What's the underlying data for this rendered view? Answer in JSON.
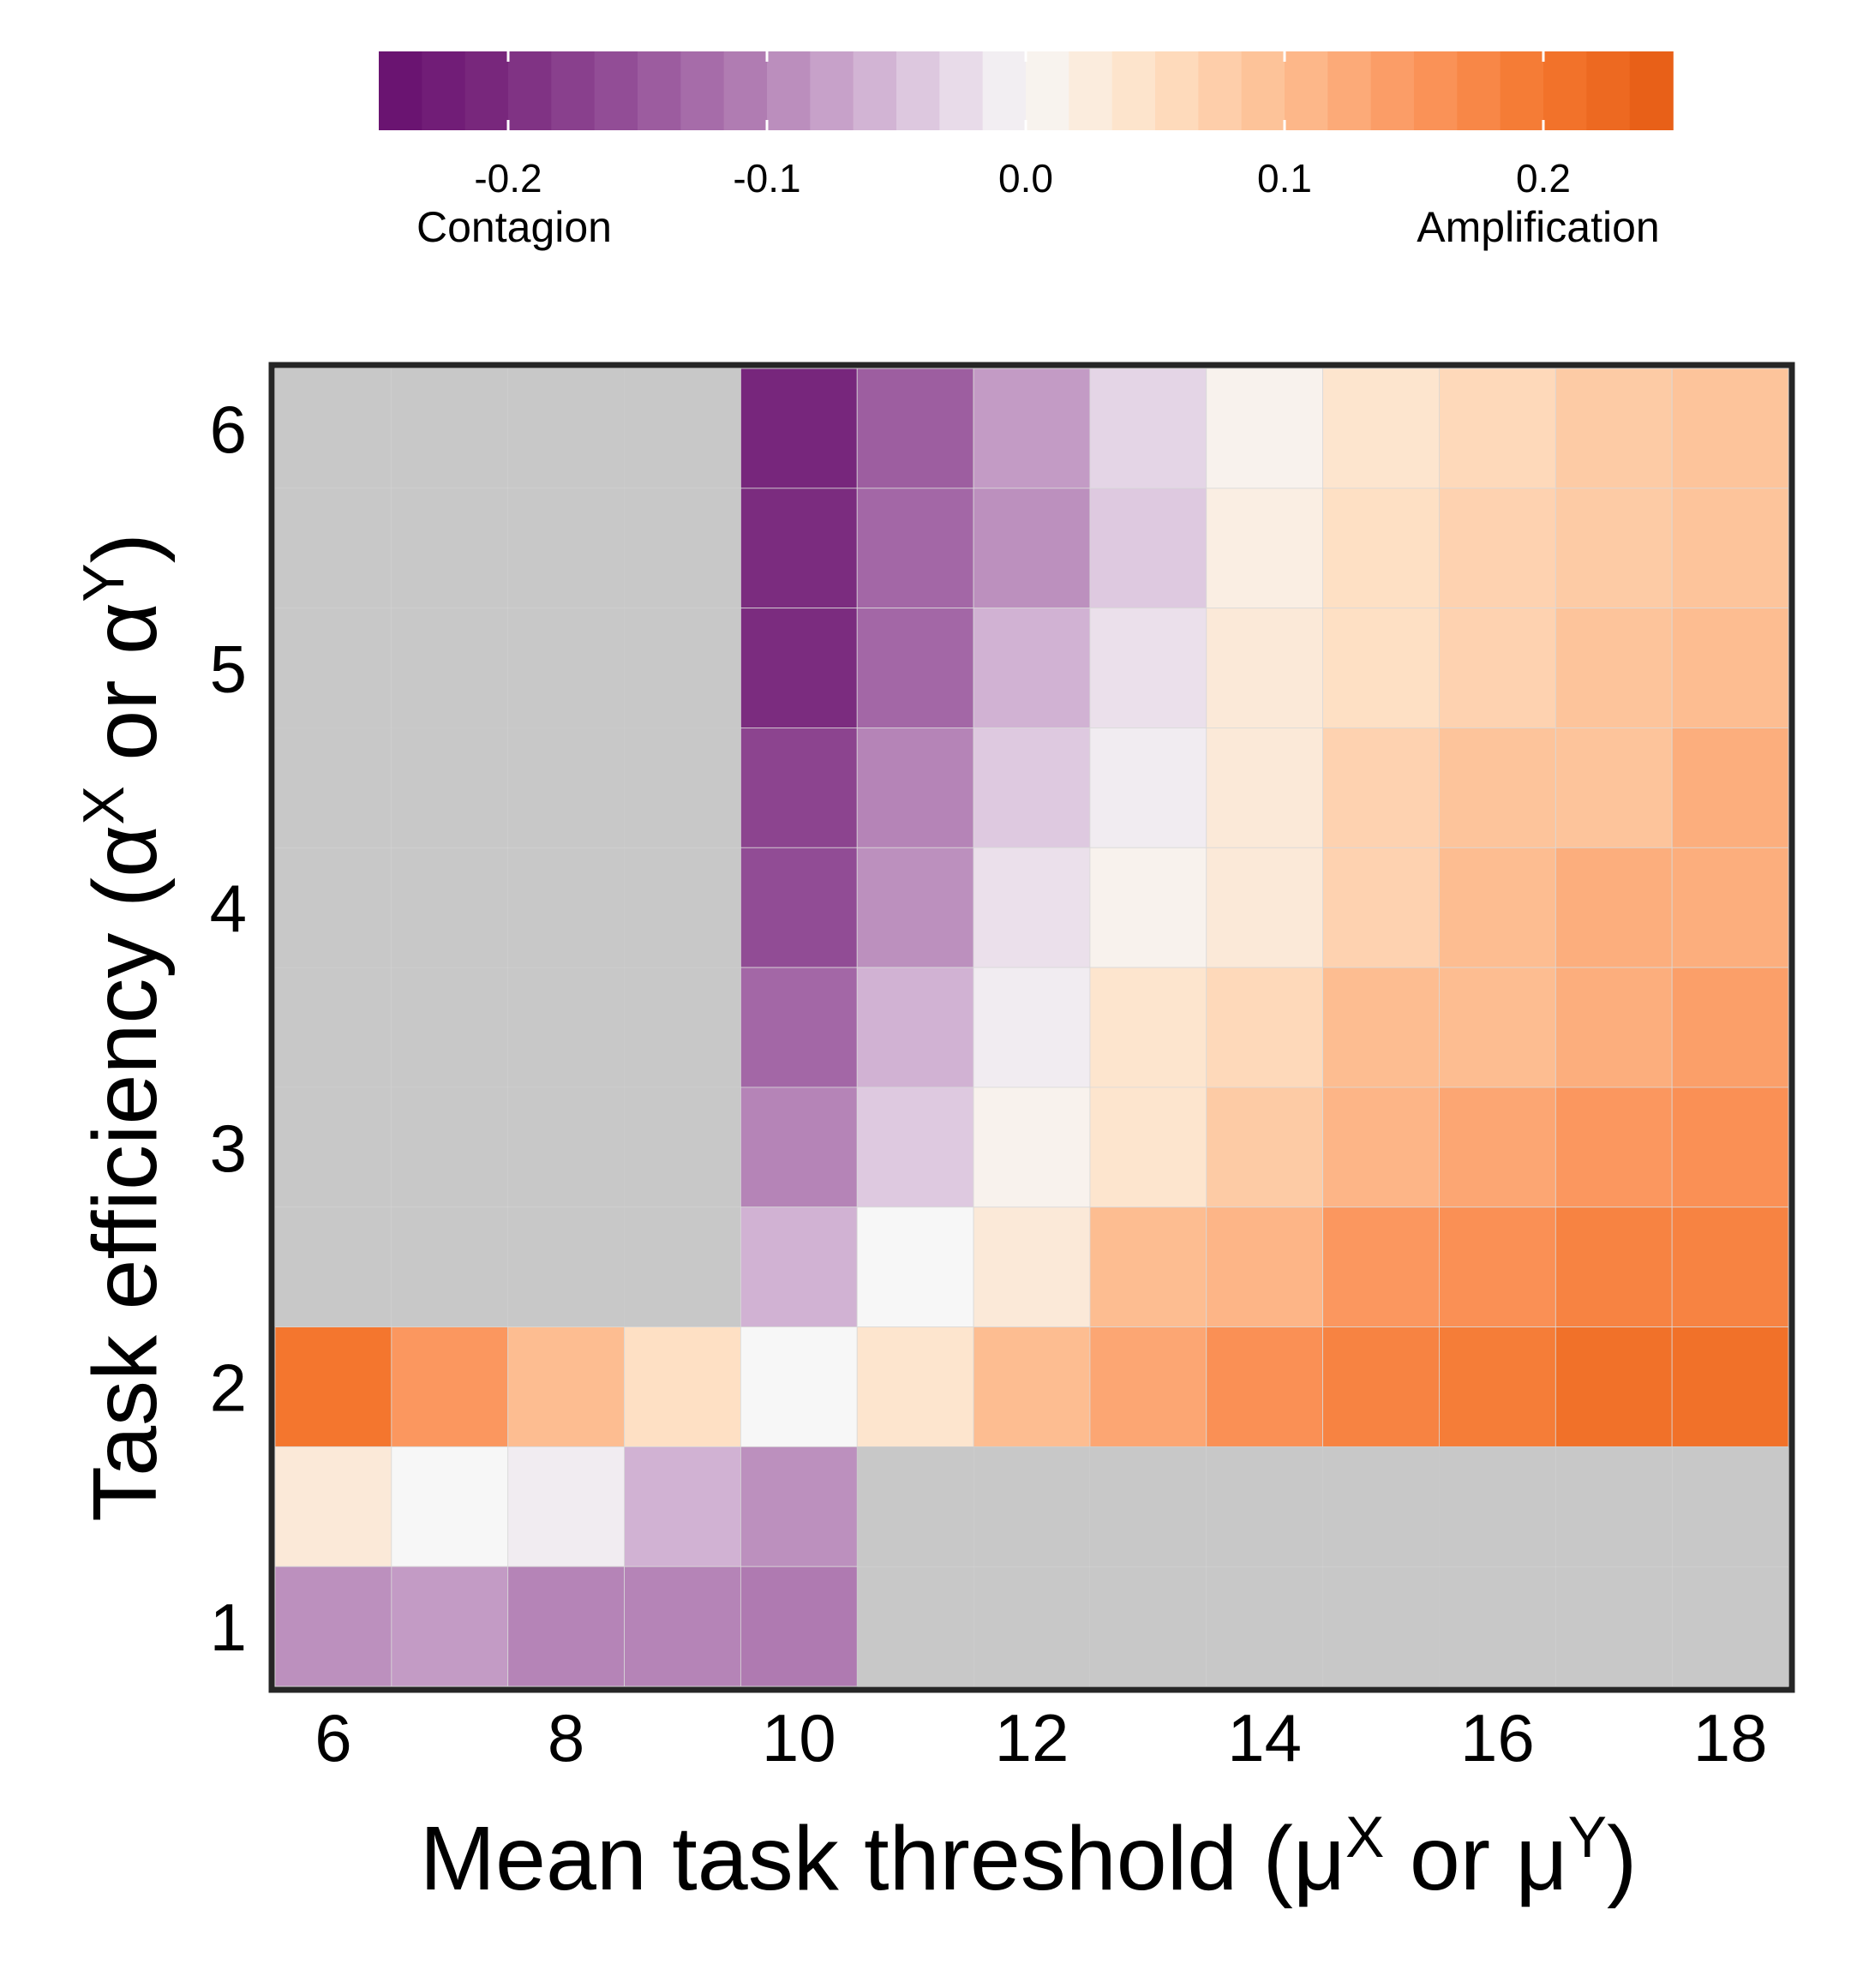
{
  "chart_data": {
    "type": "heatmap",
    "x": [
      6,
      7,
      8,
      9,
      10,
      11,
      12,
      13,
      14,
      15,
      16,
      17,
      18
    ],
    "y": [
      1,
      1.5,
      2,
      2.5,
      3,
      3.5,
      4,
      4.5,
      5,
      5.5,
      6
    ],
    "xticks": [
      "6",
      "8",
      "10",
      "12",
      "14",
      "16",
      "18"
    ],
    "yticks": [
      "1",
      "2",
      "3",
      "4",
      "5",
      "6"
    ],
    "xlabel": "Mean task threshold (μ",
    "xlabel_sup1": "X",
    "xlabel_mid": " or μ",
    "xlabel_sup2": "Y",
    "xlabel_end": ")",
    "ylabel": "Task efficiency (α",
    "ylabel_sup1": "X",
    "ylabel_mid": " or α",
    "ylabel_sup2": "Y",
    "ylabel_end": ")",
    "values_rows_top_to_bottom_y6_to_y1": [
      [
        null,
        null,
        null,
        null,
        -0.21,
        -0.14,
        -0.08,
        -0.03,
        0.01,
        0.04,
        0.06,
        0.08,
        0.09
      ],
      [
        null,
        null,
        null,
        null,
        -0.2,
        -0.13,
        -0.09,
        -0.04,
        0.02,
        0.05,
        0.07,
        0.08,
        0.09
      ],
      [
        null,
        null,
        null,
        null,
        -0.2,
        -0.13,
        -0.06,
        -0.02,
        0.03,
        0.05,
        0.07,
        0.09,
        0.1
      ],
      [
        null,
        null,
        null,
        null,
        -0.17,
        -0.1,
        -0.04,
        -0.01,
        0.03,
        0.07,
        0.09,
        0.09,
        0.12
      ],
      [
        null,
        null,
        null,
        null,
        -0.16,
        -0.09,
        -0.02,
        0.01,
        0.03,
        0.07,
        0.1,
        0.12,
        0.12
      ],
      [
        null,
        null,
        null,
        null,
        -0.13,
        -0.06,
        -0.01,
        0.04,
        0.06,
        0.1,
        0.1,
        0.12,
        0.14
      ],
      [
        null,
        null,
        null,
        null,
        -0.1,
        -0.04,
        0.01,
        0.04,
        0.08,
        0.11,
        0.13,
        0.15,
        0.16
      ],
      [
        null,
        null,
        null,
        null,
        -0.06,
        0.0,
        0.03,
        0.1,
        0.11,
        0.15,
        0.16,
        0.18,
        0.18
      ],
      [
        0.2,
        0.15,
        0.1,
        0.05,
        0.0,
        0.04,
        0.1,
        0.13,
        0.16,
        0.18,
        0.19,
        0.21,
        0.21
      ],
      [
        0.03,
        0.0,
        -0.01,
        -0.06,
        -0.09,
        null,
        null,
        null,
        null,
        null,
        null,
        null,
        null
      ],
      [
        -0.09,
        -0.08,
        -0.1,
        -0.1,
        -0.11,
        null,
        null,
        null,
        null,
        null,
        null,
        null,
        null
      ]
    ],
    "missing_color": "#c8c8c8",
    "colormap": "PuOr_r",
    "colorbar": {
      "range": [
        -0.25,
        0.25
      ],
      "ticks": [
        "-0.2",
        "-0.1",
        "0.0",
        "0.1",
        "0.2"
      ],
      "tick_values": [
        -0.2,
        -0.1,
        0.0,
        0.1,
        0.2
      ],
      "left_label": "Contagion",
      "right_label": "Amplification",
      "orientation": "horizontal",
      "placement": "top"
    },
    "grid": false,
    "legend": "none"
  }
}
